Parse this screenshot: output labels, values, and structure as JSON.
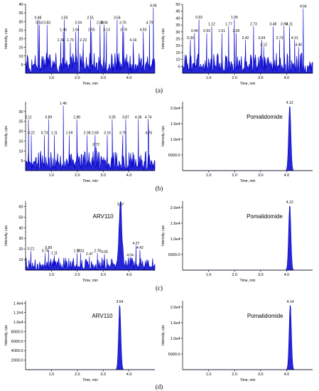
{
  "panel_labels": [
    "(a)",
    "(b)",
    "(c)",
    "(d)"
  ],
  "chart_data": [
    {
      "type": "area",
      "panel": "a",
      "position": "left",
      "xlabel": "Time, min",
      "ylabel": "Intensity, cps",
      "xlim": [
        0,
        5.0
      ],
      "ylim": [
        0,
        40
      ],
      "xticks": [
        "1.0",
        "2.0",
        "3.0",
        "4.0"
      ],
      "yticks": [
        "5",
        "10",
        "15",
        "20",
        "25",
        "30",
        "35",
        "40"
      ],
      "compound": "",
      "trace": "noise",
      "noise_level": 12,
      "seed": 11,
      "peaks": [
        {
          "x": 0.48,
          "y": 31,
          "label": "0.48"
        },
        {
          "x": 0.53,
          "y": 28,
          "label": "0.53"
        },
        {
          "x": 0.83,
          "y": 28,
          "label": "0.83"
        },
        {
          "x": 1.36,
          "y": 18,
          "label": "1.36"
        },
        {
          "x": 1.46,
          "y": 24,
          "label": "1.46"
        },
        {
          "x": 1.5,
          "y": 31,
          "label": "1.50"
        },
        {
          "x": 1.73,
          "y": 18,
          "label": "1.73"
        },
        {
          "x": 1.94,
          "y": 24,
          "label": "1.94"
        },
        {
          "x": 2.04,
          "y": 28,
          "label": "2.04"
        },
        {
          "x": 2.23,
          "y": 18,
          "label": "2.23"
        },
        {
          "x": 2.51,
          "y": 31,
          "label": "2.51"
        },
        {
          "x": 2.55,
          "y": 24,
          "label": "2.55"
        },
        {
          "x": 2.88,
          "y": 28,
          "label": "2.88"
        },
        {
          "x": 3.04,
          "y": 28,
          "label": "3.04"
        },
        {
          "x": 3.13,
          "y": 24,
          "label": "3.13"
        },
        {
          "x": 3.54,
          "y": 31,
          "label": "3.54"
        },
        {
          "x": 3.76,
          "y": 28,
          "label": "3.76"
        },
        {
          "x": 3.79,
          "y": 24,
          "label": "3.79"
        },
        {
          "x": 4.16,
          "y": 18,
          "label": "4.16"
        },
        {
          "x": 4.55,
          "y": 24,
          "label": "4.55"
        },
        {
          "x": 4.79,
          "y": 28,
          "label": "4.79"
        },
        {
          "x": 4.94,
          "y": 38,
          "label": "4.94"
        }
      ]
    },
    {
      "type": "area",
      "panel": "a",
      "position": "right",
      "xlabel": "Time, min",
      "ylabel": "Intensity, cps",
      "xlim": [
        0,
        5.0
      ],
      "ylim": [
        0,
        50
      ],
      "xticks": [
        "1.0",
        "2.0",
        "3.0",
        "4.0"
      ],
      "yticks": [
        "5",
        "10",
        "15",
        "20",
        "25",
        "30",
        "35",
        "40",
        "45",
        "50"
      ],
      "compound": "",
      "trace": "noise",
      "noise_level": 15,
      "seed": 23,
      "peaks": [
        {
          "x": 0.3,
          "y": 24,
          "label": "0.30"
        },
        {
          "x": 0.46,
          "y": 29,
          "label": "0.46"
        },
        {
          "x": 0.63,
          "y": 39,
          "label": "0.63"
        },
        {
          "x": 0.93,
          "y": 29,
          "label": "0.93"
        },
        {
          "x": 1.12,
          "y": 34,
          "label": "1.12"
        },
        {
          "x": 1.51,
          "y": 29,
          "label": "1.51"
        },
        {
          "x": 1.77,
          "y": 34,
          "label": "1.77"
        },
        {
          "x": 1.99,
          "y": 39,
          "label": "1.99"
        },
        {
          "x": 2.06,
          "y": 29,
          "label": "2.06"
        },
        {
          "x": 2.42,
          "y": 24,
          "label": "2.42"
        },
        {
          "x": 2.73,
          "y": 34,
          "label": "2.73"
        },
        {
          "x": 3.04,
          "y": 24,
          "label": "3.04"
        },
        {
          "x": 3.12,
          "y": 19,
          "label": "3.12"
        },
        {
          "x": 3.48,
          "y": 34,
          "label": "3.48"
        },
        {
          "x": 3.73,
          "y": 24,
          "label": "3.73"
        },
        {
          "x": 3.9,
          "y": 34,
          "label": "3.90"
        },
        {
          "x": 4.11,
          "y": 34,
          "label": "4.11"
        },
        {
          "x": 4.31,
          "y": 24,
          "label": "4.31"
        },
        {
          "x": 4.46,
          "y": 19,
          "label": "4.46"
        },
        {
          "x": 4.64,
          "y": 47,
          "label": "4.64"
        }
      ]
    },
    {
      "type": "area",
      "panel": "b",
      "position": "left",
      "xlabel": "Time, min",
      "ylabel": "Intensity, cps",
      "xlim": [
        0,
        5.0
      ],
      "ylim": [
        0,
        35
      ],
      "xticks": [
        "1.0",
        "2.0",
        "3.0",
        "4.0"
      ],
      "yticks": [
        "5",
        "10",
        "15",
        "20",
        "25",
        "30"
      ],
      "compound": "",
      "trace": "noise",
      "noise_level": 10,
      "seed": 37,
      "peaks": [
        {
          "x": 0.11,
          "y": 26,
          "label": "0.11"
        },
        {
          "x": 0.22,
          "y": 18,
          "label": "0.22"
        },
        {
          "x": 0.73,
          "y": 18,
          "label": "0.73"
        },
        {
          "x": 0.89,
          "y": 26,
          "label": "0.89"
        },
        {
          "x": 1.11,
          "y": 18,
          "label": "1.11"
        },
        {
          "x": 1.46,
          "y": 33,
          "label": "1.46"
        },
        {
          "x": 1.69,
          "y": 18,
          "label": "1.69"
        },
        {
          "x": 1.98,
          "y": 26,
          "label": "1.98"
        },
        {
          "x": 2.38,
          "y": 18,
          "label": "2.38"
        },
        {
          "x": 2.69,
          "y": 18,
          "label": "2.69"
        },
        {
          "x": 2.72,
          "y": 12,
          "label": "2.72"
        },
        {
          "x": 3.16,
          "y": 18,
          "label": "3.16"
        },
        {
          "x": 3.35,
          "y": 26,
          "label": "3.35"
        },
        {
          "x": 3.76,
          "y": 18,
          "label": "3.76"
        },
        {
          "x": 3.87,
          "y": 26,
          "label": "3.87"
        },
        {
          "x": 4.36,
          "y": 26,
          "label": "4.36"
        },
        {
          "x": 4.76,
          "y": 18,
          "label": "4.76"
        },
        {
          "x": 4.74,
          "y": 26,
          "label": "4.74"
        }
      ]
    },
    {
      "type": "area",
      "panel": "b",
      "position": "right",
      "xlabel": "Time, min",
      "ylabel": "Intensity, cps",
      "xlim": [
        0,
        5.0
      ],
      "ylim": [
        0,
        22000
      ],
      "xticks": [
        "1.0",
        "2.0",
        "3.0",
        "4.0"
      ],
      "yticks": [
        "5000.0",
        "1.0e4",
        "1.5e4",
        "2.0e4"
      ],
      "ytick_values": [
        5000,
        10000,
        15000,
        20000
      ],
      "compound": "Pomalidomide",
      "trace": "peak",
      "noise_level": 0,
      "seed": 0,
      "main_peak": {
        "x": 4.12,
        "y": 21000,
        "width": 0.06,
        "label": "4.12"
      },
      "peaks": []
    },
    {
      "type": "area",
      "panel": "c",
      "position": "left",
      "xlabel": "Time, min",
      "ylabel": "Intensity, cps",
      "xlim": [
        0,
        5.0
      ],
      "ylim": [
        0,
        65
      ],
      "xticks": [
        "1.0",
        "2.0",
        "3.0",
        "4.0"
      ],
      "yticks": [
        "10",
        "20",
        "30",
        "40",
        "50",
        "60"
      ],
      "compound": "ARV110",
      "trace": "noisypeak",
      "noise_level": 12,
      "seed": 53,
      "main_peak": {
        "x": 3.67,
        "y": 60,
        "width": 0.07,
        "label": "3.67"
      },
      "peaks": [
        {
          "x": 0.21,
          "y": 18,
          "label": "0.21"
        },
        {
          "x": 0.76,
          "y": 16,
          "label": "0.76"
        },
        {
          "x": 0.89,
          "y": 19,
          "label": "0.89"
        },
        {
          "x": 1.11,
          "y": 14,
          "label": "1.11"
        },
        {
          "x": 1.99,
          "y": 16,
          "label": "1.99"
        },
        {
          "x": 2.13,
          "y": 16,
          "label": "2.13"
        },
        {
          "x": 2.47,
          "y": 13,
          "label": "2.47"
        },
        {
          "x": 2.78,
          "y": 16,
          "label": "2.78"
        },
        {
          "x": 3.05,
          "y": 15,
          "label": "3.05"
        },
        {
          "x": 4.04,
          "y": 12,
          "label": "4.04"
        },
        {
          "x": 4.27,
          "y": 23,
          "label": "4.27"
        },
        {
          "x": 4.42,
          "y": 19,
          "label": "4.42"
        }
      ]
    },
    {
      "type": "area",
      "panel": "c",
      "position": "right",
      "xlabel": "Time, min",
      "ylabel": "Intensity, cps",
      "xlim": [
        0,
        5.0
      ],
      "ylim": [
        0,
        22000
      ],
      "xticks": [
        "1.0",
        "2.0",
        "3.0",
        "4.0"
      ],
      "yticks": [
        "5000.0",
        "1.0e4",
        "1.5e4",
        "2.0e4"
      ],
      "ytick_values": [
        5000,
        10000,
        15000,
        20000
      ],
      "compound": "Pomalidomide",
      "trace": "peak",
      "noise_level": 0,
      "seed": 0,
      "main_peak": {
        "x": 4.12,
        "y": 21000,
        "width": 0.06,
        "label": "4.12"
      },
      "peaks": []
    },
    {
      "type": "area",
      "panel": "d",
      "position": "left",
      "xlabel": "Time, min",
      "ylabel": "Intensity, cps",
      "xlim": [
        0,
        5.0
      ],
      "ylim": [
        0,
        14500
      ],
      "xticks": [
        "1.0",
        "2.0",
        "3.0",
        "4.0"
      ],
      "yticks": [
        "2000.0",
        "4000.0",
        "6000.0",
        "8000.0",
        "1.0e4",
        "1.2e4",
        "1.4e4"
      ],
      "ytick_values": [
        2000,
        4000,
        6000,
        8000,
        10000,
        12000,
        14000
      ],
      "compound": "ARV110",
      "trace": "peak",
      "noise_level": 0,
      "seed": 0,
      "main_peak": {
        "x": 3.64,
        "y": 13800,
        "width": 0.06,
        "label": "3.64"
      },
      "peaks": []
    },
    {
      "type": "area",
      "panel": "d",
      "position": "right",
      "xlabel": "Time, min",
      "ylabel": "Intensity, cps",
      "xlim": [
        0,
        5.0
      ],
      "ylim": [
        0,
        22000
      ],
      "xticks": [
        "1.0",
        "2.0",
        "3.0",
        "4.0"
      ],
      "yticks": [
        "5000.0",
        "1.0e4",
        "1.5e4",
        "2.0e4"
      ],
      "ytick_values": [
        5000,
        10000,
        15000,
        20000
      ],
      "compound": "Pomalidomide",
      "trace": "peak",
      "noise_level": 0,
      "seed": 0,
      "main_peak": {
        "x": 4.14,
        "y": 21000,
        "width": 0.06,
        "label": "4.14"
      },
      "peaks": []
    }
  ],
  "colors": {
    "trace": "#0000cc",
    "axis": "#000000",
    "text": "#000000"
  }
}
